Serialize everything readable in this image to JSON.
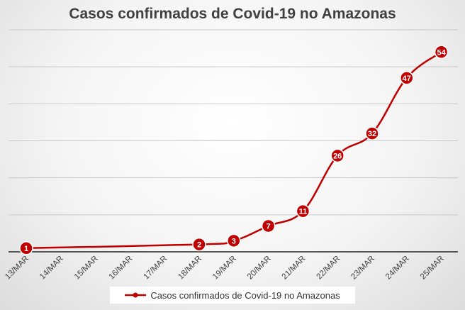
{
  "chart_data": {
    "type": "line",
    "title": "Casos confirmados de Covid-19 no Amazonas",
    "categories": [
      "13/MAR",
      "14/MAR",
      "15/MAR",
      "16/MAR",
      "17/MAR",
      "18/MAR",
      "19/MAR",
      "20/MAR",
      "21/MAR",
      "22/MAR",
      "23/MAR",
      "24/MAR",
      "25/MAR"
    ],
    "series": [
      {
        "name": "Casos confirmados de Covid-19 no Amazonas",
        "color": "#c00000",
        "points": [
          {
            "x": "13/MAR",
            "y": 1
          },
          {
            "x": "18/MAR",
            "y": 2
          },
          {
            "x": "19/MAR",
            "y": 3
          },
          {
            "x": "20/MAR",
            "y": 7
          },
          {
            "x": "21/MAR",
            "y": 11
          },
          {
            "x": "22/MAR",
            "y": 26
          },
          {
            "x": "23/MAR",
            "y": 32
          },
          {
            "x": "24/MAR",
            "y": 47
          },
          {
            "x": "25/MAR",
            "y": 54
          }
        ]
      }
    ],
    "ylim": [
      0,
      60
    ],
    "y_gridlines": [
      0,
      10,
      20,
      30,
      40,
      50,
      60
    ],
    "grid": true,
    "legend_position": "bottom",
    "data_labels": true
  }
}
